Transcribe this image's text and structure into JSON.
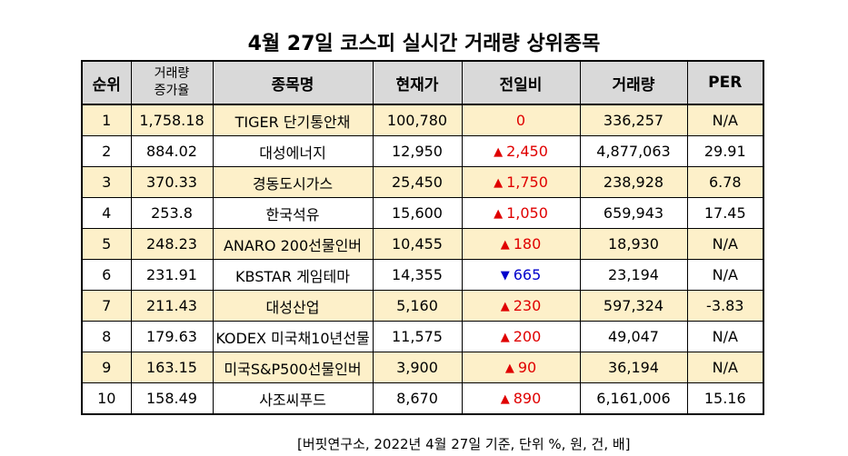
{
  "title": "4월 27일 코스피 실시간 거래량 상위종목",
  "headers": {
    "rank": "순위",
    "volume_increase_line1": "거래량",
    "volume_increase_line2": "증가율",
    "name": "종목명",
    "price": "현재가",
    "change": "전일비",
    "volume": "거래량",
    "per": "PER"
  },
  "rows": [
    {
      "rank": "1",
      "increase": "1,758.18",
      "name": "TIGER 단기통안채",
      "price": "100,780",
      "direction": "flat",
      "arrow": "",
      "change": "0",
      "volume": "336,257",
      "per": "N/A"
    },
    {
      "rank": "2",
      "increase": "884.02",
      "name": "대성에너지",
      "price": "12,950",
      "direction": "up",
      "arrow": "▲",
      "change": "2,450",
      "volume": "4,877,063",
      "per": "29.91"
    },
    {
      "rank": "3",
      "increase": "370.33",
      "name": "경동도시가스",
      "price": "25,450",
      "direction": "up",
      "arrow": "▲",
      "change": "1,750",
      "volume": "238,928",
      "per": "6.78"
    },
    {
      "rank": "4",
      "increase": "253.8",
      "name": "한국석유",
      "price": "15,600",
      "direction": "up",
      "arrow": "▲",
      "change": "1,050",
      "volume": "659,943",
      "per": "17.45"
    },
    {
      "rank": "5",
      "increase": "248.23",
      "name": "ANARO 200선물인버",
      "price": "10,455",
      "direction": "up",
      "arrow": "▲",
      "change": "180",
      "volume": "18,930",
      "per": "N/A"
    },
    {
      "rank": "6",
      "increase": "231.91",
      "name": "KBSTAR 게임테마",
      "price": "14,355",
      "direction": "down",
      "arrow": "▼",
      "change": "665",
      "volume": "23,194",
      "per": "N/A"
    },
    {
      "rank": "7",
      "increase": "211.43",
      "name": "대성산업",
      "price": "5,160",
      "direction": "up",
      "arrow": "▲",
      "change": "230",
      "volume": "597,324",
      "per": "-3.83"
    },
    {
      "rank": "8",
      "increase": "179.63",
      "name": "KODEX 미국채10년선물",
      "price": "11,575",
      "direction": "up",
      "arrow": "▲",
      "change": "200",
      "volume": "49,047",
      "per": "N/A"
    },
    {
      "rank": "9",
      "increase": "163.15",
      "name": "미국S&P500선물인버",
      "price": "3,900",
      "direction": "up",
      "arrow": "▲",
      "change": "90",
      "volume": "36,194",
      "per": "N/A"
    },
    {
      "rank": "10",
      "increase": "158.49",
      "name": "사조씨푸드",
      "price": "8,670",
      "direction": "up",
      "arrow": "▲",
      "change": "890",
      "volume": "6,161,006",
      "per": "15.16"
    }
  ],
  "footnote": "[버핏연구소, 2022년 4월 27일 기준, 단위 %, 원, 건, 배]",
  "colors": {
    "header_bg": "#d9d9d9",
    "stripe_bg": "#fdf0c9",
    "up": "#e00000",
    "down": "#0000cc"
  }
}
